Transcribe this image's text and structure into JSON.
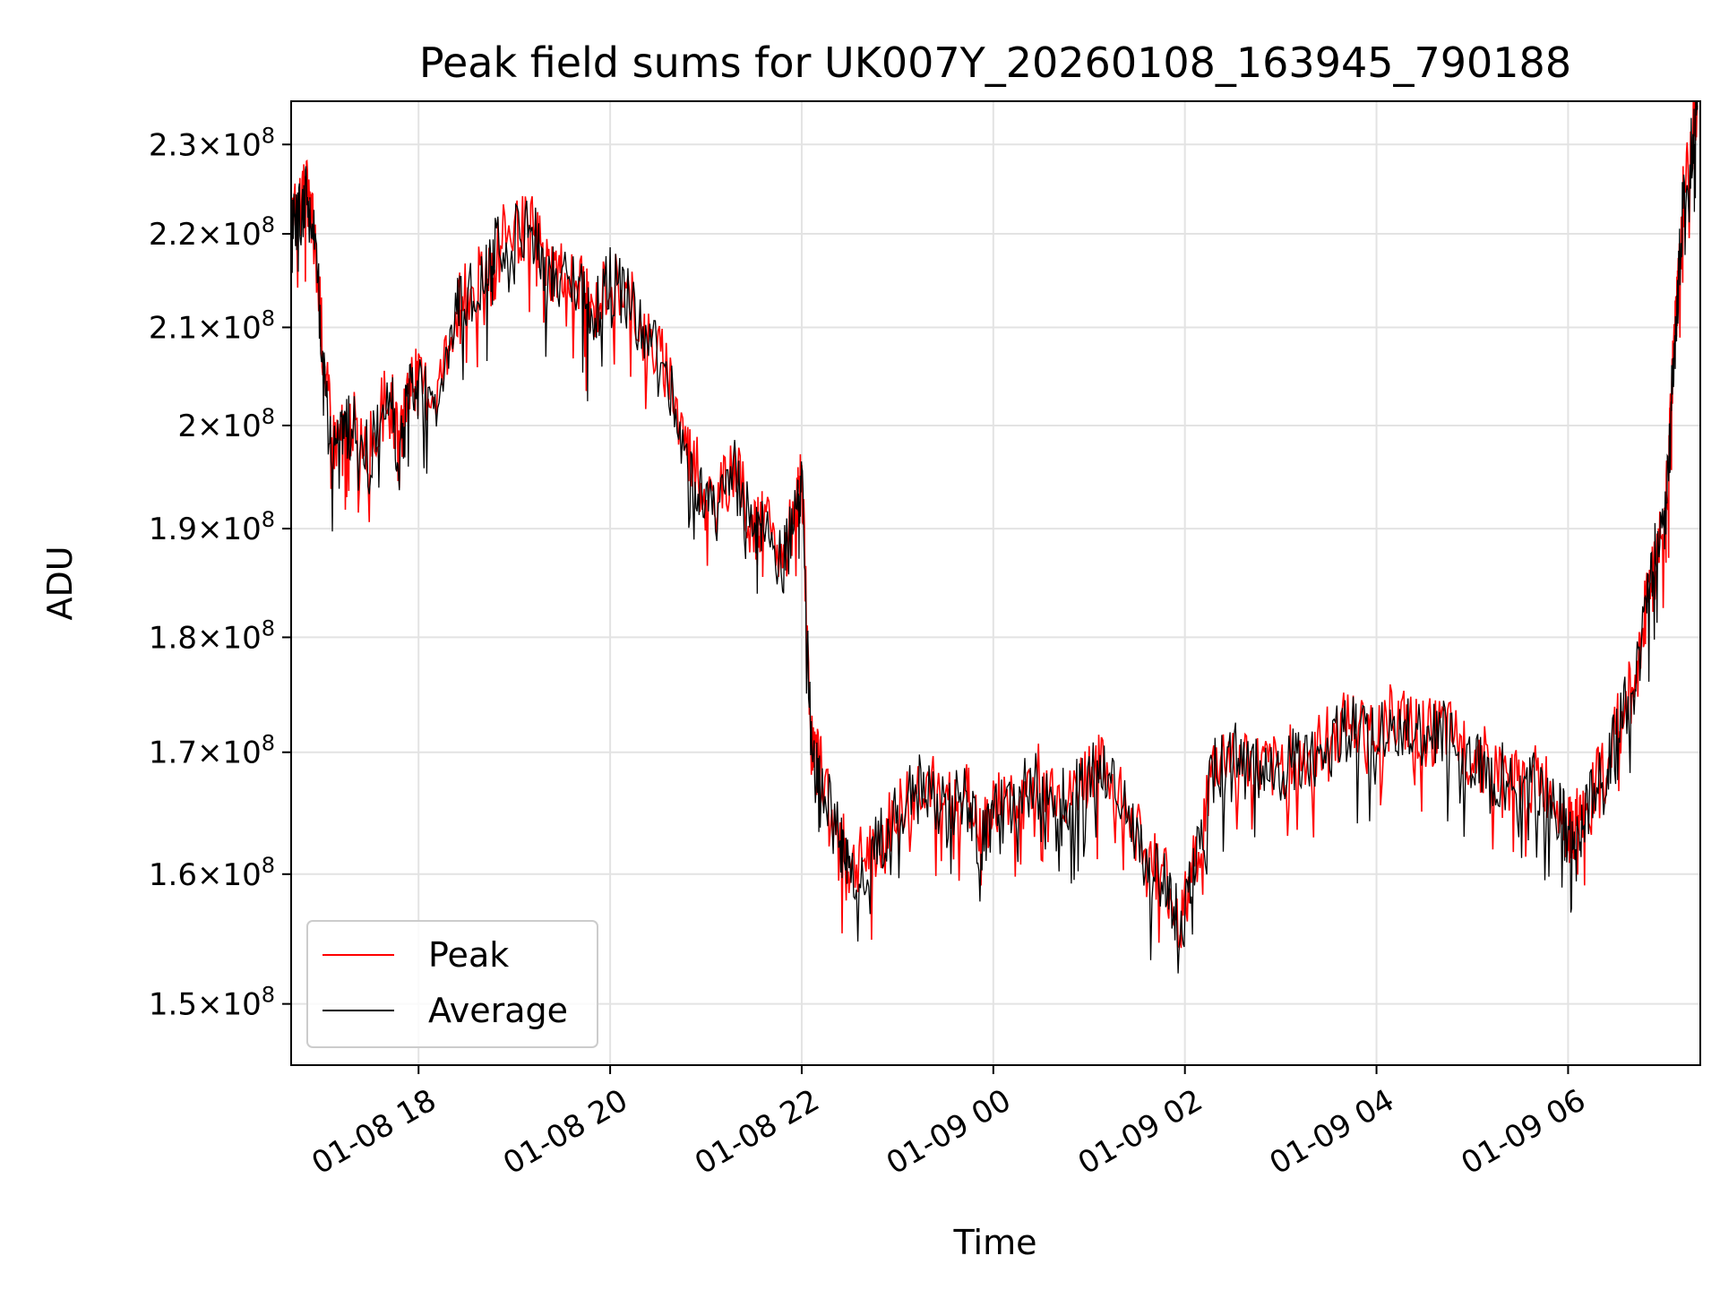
{
  "chart_data": {
    "type": "line",
    "title": "Peak field sums for UK007Y_20260108_163945_790188",
    "xlabel": "Time",
    "ylabel": "ADU",
    "yscale": "log",
    "grid": true,
    "legend_position": "lower-left",
    "x_range_hours": [
      16.67,
      7.38
    ],
    "ylim": [
      145500000,
      235000000
    ],
    "xticks": [
      {
        "hour": 18,
        "label": "01-08 18"
      },
      {
        "hour": 20,
        "label": "01-08 20"
      },
      {
        "hour": 22,
        "label": "01-08 22"
      },
      {
        "hour": 24,
        "label": "01-09 00"
      },
      {
        "hour": 26,
        "label": "01-09 02"
      },
      {
        "hour": 28,
        "label": "01-09 04"
      },
      {
        "hour": 30,
        "label": "01-09 06"
      }
    ],
    "yticks": [
      {
        "value": 150000000,
        "mantissa": "1.5",
        "exp": "8"
      },
      {
        "value": 160000000,
        "mantissa": "1.6",
        "exp": "8"
      },
      {
        "value": 170000000,
        "mantissa": "1.7",
        "exp": "8"
      },
      {
        "value": 180000000,
        "mantissa": "1.8",
        "exp": "8"
      },
      {
        "value": 190000000,
        "mantissa": "1.9",
        "exp": "8"
      },
      {
        "value": 200000000,
        "mantissa": "2",
        "exp": "8"
      },
      {
        "value": 210000000,
        "mantissa": "2.1",
        "exp": "8"
      },
      {
        "value": 220000000,
        "mantissa": "2.2",
        "exp": "8"
      },
      {
        "value": 230000000,
        "mantissa": "2.3",
        "exp": "8"
      }
    ],
    "times_note": "x values are hours since 2026-01-08 00:00",
    "x": [
      16.67,
      16.75,
      16.83,
      16.9,
      17.0,
      17.1,
      17.2,
      17.3,
      17.5,
      17.7,
      17.8,
      17.9,
      18.0,
      18.2,
      18.4,
      18.5,
      18.7,
      18.8,
      19.0,
      19.2,
      19.35,
      19.5,
      19.7,
      19.8,
      20.0,
      20.2,
      20.4,
      20.6,
      20.8,
      20.95,
      21.1,
      21.3,
      21.5,
      21.6,
      21.8,
      21.95,
      22.0,
      22.1,
      22.2,
      22.4,
      22.5,
      22.7,
      22.9,
      23.1,
      23.3,
      23.5,
      23.7,
      23.85,
      24.0,
      24.2,
      24.4,
      24.6,
      24.8,
      25.0,
      25.2,
      25.4,
      25.6,
      25.8,
      25.95,
      26.1,
      26.3,
      26.5,
      26.7,
      26.9,
      27.1,
      27.3,
      27.5,
      27.7,
      27.9,
      28.1,
      28.3,
      28.5,
      28.7,
      28.9,
      29.1,
      29.3,
      29.5,
      29.7,
      29.9,
      30.0,
      30.1,
      30.2,
      30.4,
      30.55,
      30.7,
      30.8,
      30.9,
      31.0,
      31.05,
      31.1,
      31.15,
      31.2,
      31.3,
      31.35
    ],
    "series": [
      {
        "name": "Peak",
        "color": "#ff0000",
        "values": [
          222000000,
          223000000,
          224500000,
          221000000,
          208000000,
          198500000,
          199000000,
          200500000,
          198000000,
          204000000,
          197000000,
          205000000,
          204000000,
          203500000,
          212000000,
          213500000,
          216000000,
          219000000,
          220500000,
          221000000,
          216500000,
          216000000,
          215000000,
          211000000,
          215500000,
          213000000,
          208500000,
          206000000,
          198000000,
          194500000,
          192000000,
          196000000,
          189500000,
          190500000,
          187000000,
          192500000,
          195000000,
          171000000,
          168500000,
          163000000,
          160500000,
          161500000,
          164000000,
          166500000,
          168000000,
          165500000,
          167500000,
          163000000,
          165000000,
          166500000,
          168000000,
          167500000,
          166000000,
          169000000,
          168500000,
          165500000,
          161000000,
          160000000,
          156000000,
          161000000,
          169000000,
          170500000,
          169000000,
          168500000,
          169500000,
          170000000,
          171000000,
          172500000,
          172000000,
          173000000,
          172500000,
          171500000,
          172000000,
          170500000,
          169500000,
          168500000,
          167500000,
          168000000,
          166000000,
          163500000,
          164500000,
          166000000,
          169000000,
          174000000,
          176000000,
          182000000,
          188000000,
          190000000,
          196000000,
          207000000,
          215000000,
          224000000,
          231000000,
          234500000
        ]
      },
      {
        "name": "Average",
        "color": "#000000",
        "values": [
          221500000,
          222500000,
          224000000,
          220500000,
          207500000,
          198000000,
          198500000,
          200000000,
          197500000,
          203500000,
          196500000,
          204500000,
          203500000,
          203000000,
          211500000,
          213000000,
          215500000,
          218500000,
          220000000,
          220500000,
          216000000,
          215500000,
          214500000,
          210500000,
          215000000,
          212500000,
          208000000,
          205500000,
          197500000,
          194000000,
          191500000,
          195500000,
          189000000,
          190000000,
          186500000,
          192000000,
          194500000,
          170500000,
          168000000,
          162500000,
          160000000,
          161000000,
          163500000,
          166000000,
          167500000,
          165000000,
          167000000,
          162500000,
          164500000,
          166000000,
          167500000,
          167000000,
          165500000,
          168500000,
          168000000,
          165000000,
          160500000,
          159500000,
          155500000,
          160500000,
          168500000,
          170000000,
          168500000,
          168000000,
          169000000,
          169500000,
          170500000,
          172000000,
          171500000,
          172500000,
          172000000,
          171000000,
          171500000,
          170000000,
          169000000,
          168000000,
          167000000,
          167500000,
          165500000,
          163000000,
          164000000,
          165500000,
          168500000,
          173500000,
          175500000,
          181500000,
          187500000,
          189500000,
          195500000,
          206500000,
          214500000,
          223500000,
          230500000,
          234000000
        ]
      }
    ],
    "legend": [
      "Peak",
      "Average"
    ]
  }
}
